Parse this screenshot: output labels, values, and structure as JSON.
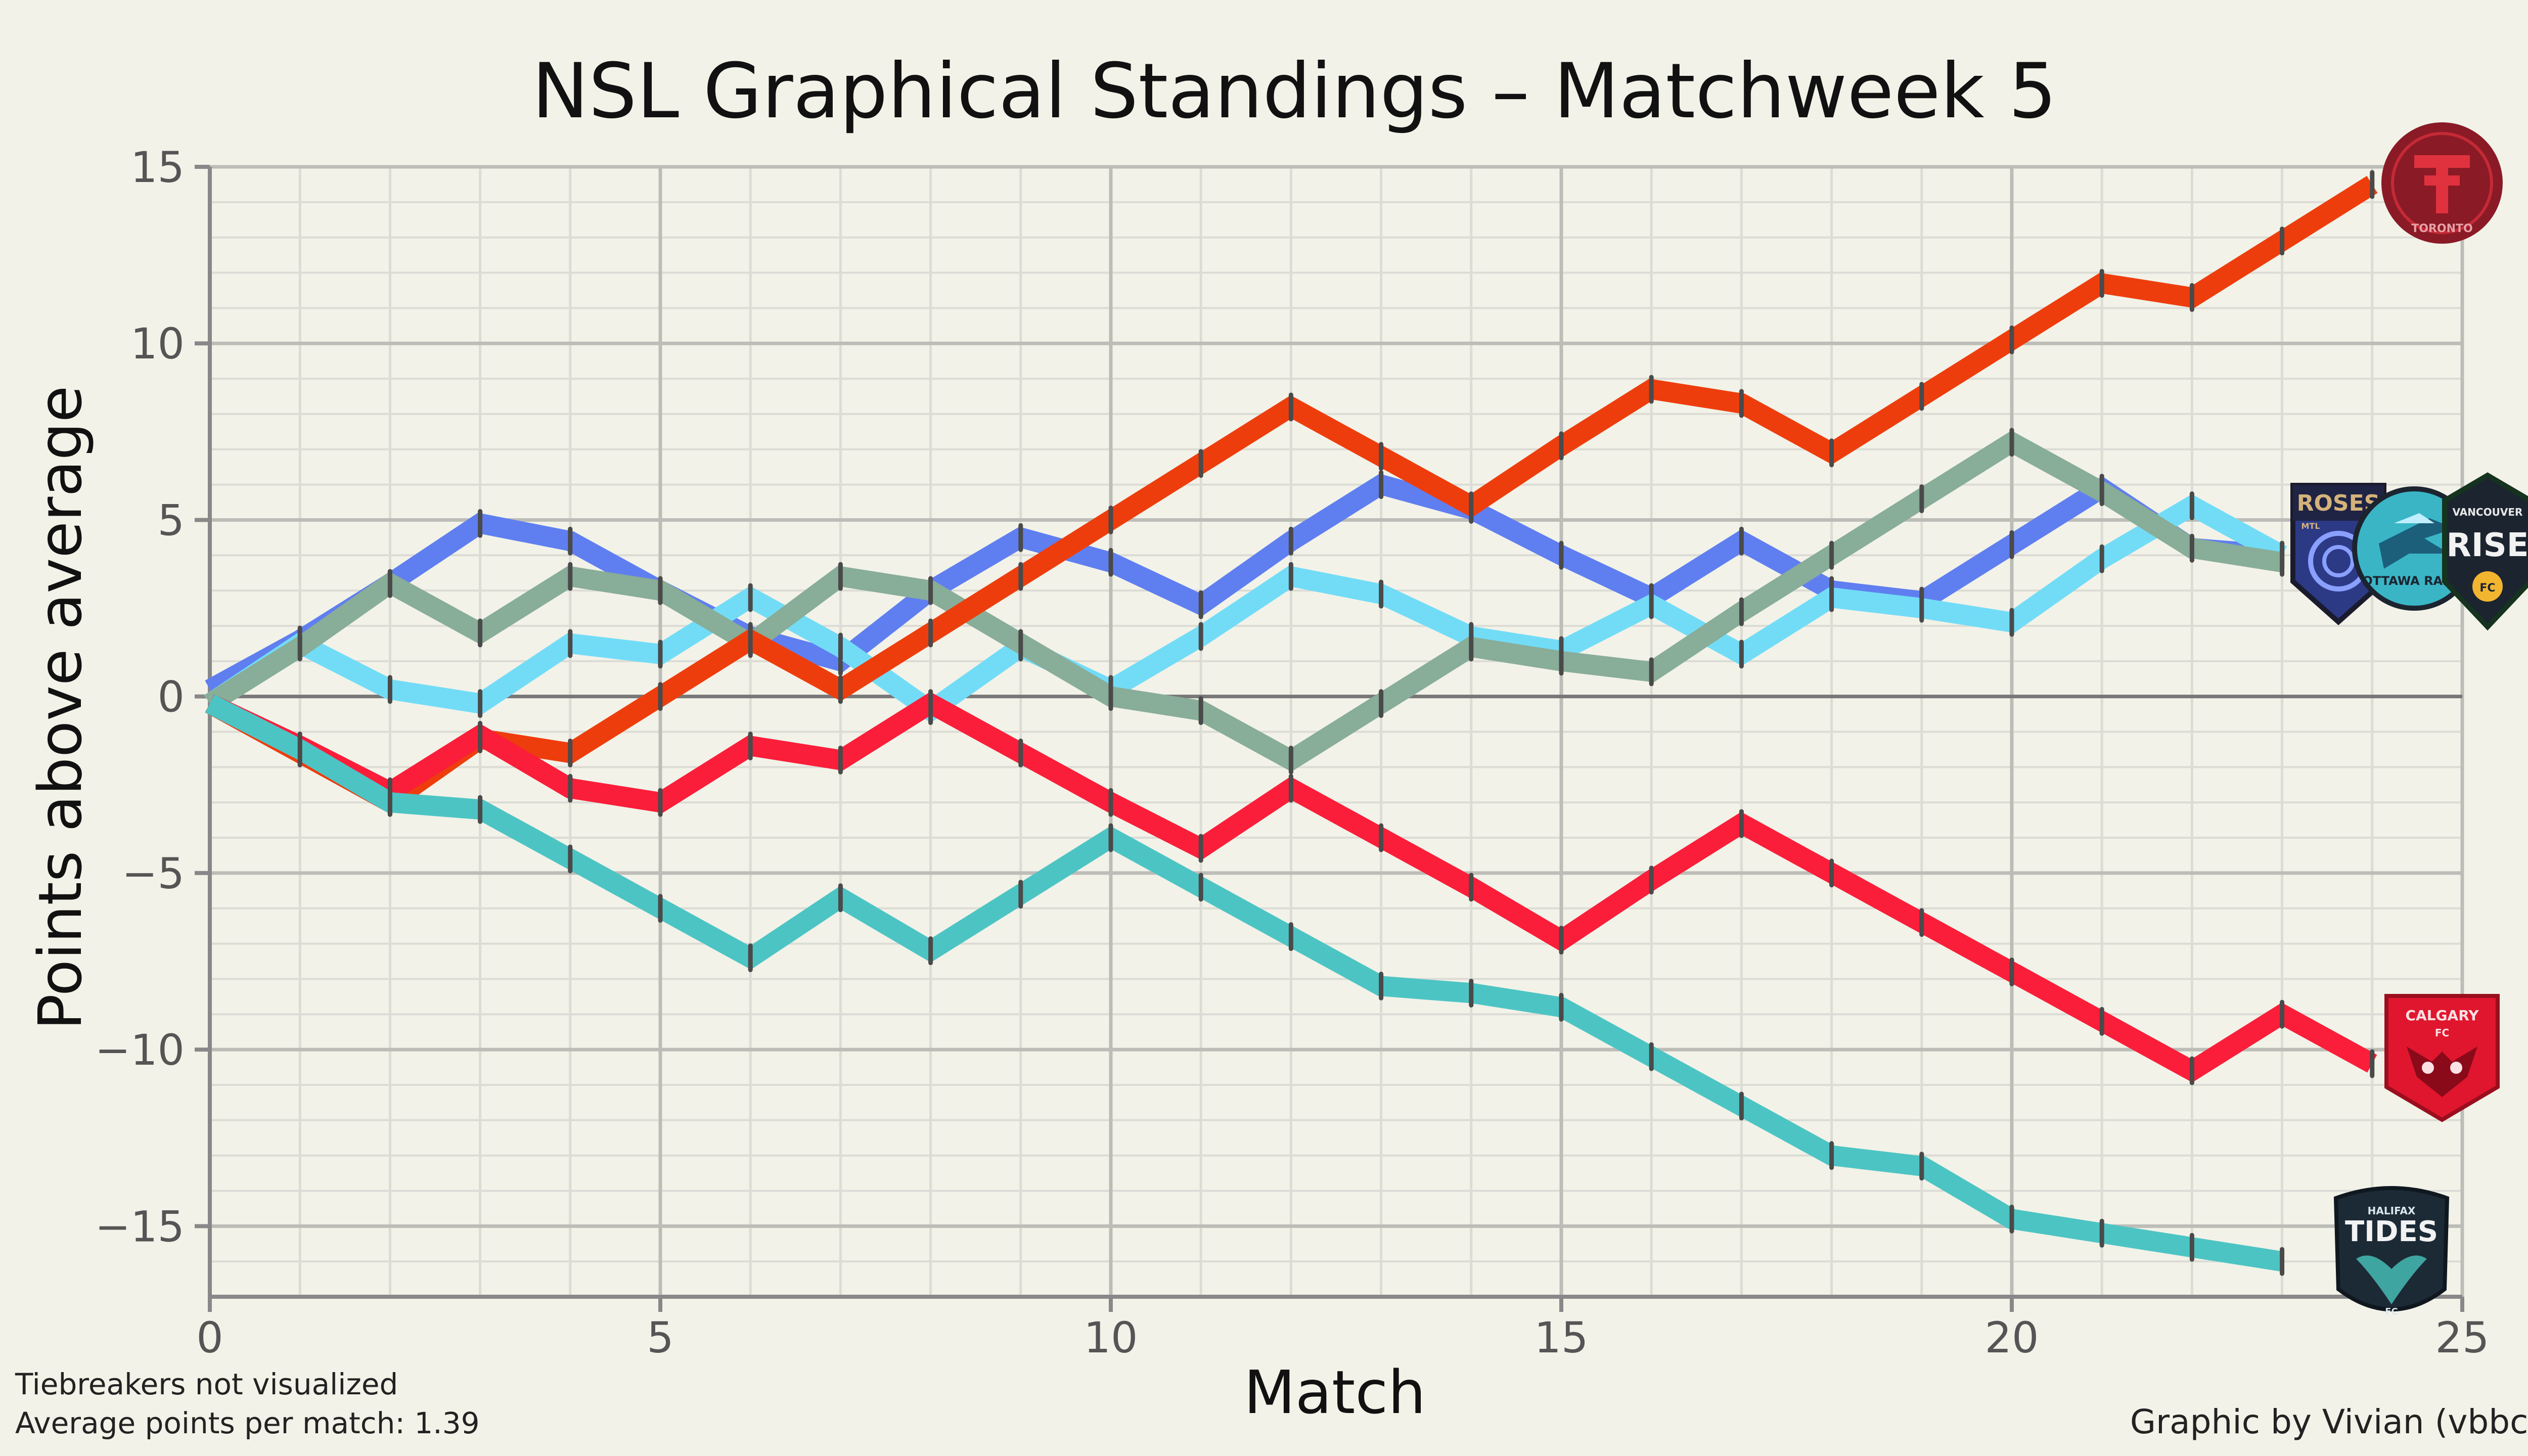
{
  "chart_data": {
    "type": "line",
    "title": "NSL Graphical Standings – Matchweek 5",
    "xlabel": "Match",
    "ylabel": "Points above average",
    "xlim": [
      0,
      25
    ],
    "ylim": [
      -17,
      15
    ],
    "x_ticks": [
      0,
      5,
      10,
      15,
      20,
      25
    ],
    "y_ticks": [
      -15,
      -10,
      -5,
      0,
      5,
      10,
      15
    ],
    "x_tick_labels": [
      "0",
      "5",
      "10",
      "15",
      "20",
      "25"
    ],
    "y_tick_labels": [
      "−15",
      "−10",
      "−5",
      "0",
      "5",
      "10",
      "15"
    ],
    "grid": true,
    "legend": "team logos at line ends",
    "series": [
      {
        "color": "#5f7ff0",
        "logo": "Roses",
        "values": [
          0.2,
          1.6,
          3.2,
          4.9,
          4.4,
          3.0,
          1.7,
          1.0,
          3.0,
          4.5,
          3.8,
          2.6,
          4.4,
          6.0,
          5.3,
          4.0,
          2.8,
          4.4,
          3.0,
          2.7,
          4.3,
          5.9,
          4.2,
          4.0
        ]
      },
      {
        "color": "#72dcf7",
        "logo": "Ottawa Rapid",
        "values": [
          -0.2,
          1.5,
          0.2,
          -0.2,
          1.5,
          1.2,
          2.8,
          1.4,
          -0.4,
          1.4,
          0.2,
          1.7,
          3.4,
          2.9,
          1.7,
          1.3,
          2.6,
          1.2,
          2.8,
          2.5,
          2.1,
          3.9,
          5.4,
          4.0
        ]
      },
      {
        "color": "#88ad98",
        "logo": "Vancouver Rise",
        "values": [
          -0.2,
          1.4,
          3.2,
          1.8,
          3.4,
          3.0,
          1.5,
          3.4,
          3.0,
          1.5,
          0.0,
          -0.4,
          -1.8,
          -0.2,
          1.4,
          1.0,
          0.7,
          2.4,
          4.0,
          5.6,
          7.2,
          5.8,
          4.2,
          3.8
        ]
      },
      {
        "color": "#ee3d0c",
        "logo": "Toronto",
        "values": [
          -0.2,
          -1.6,
          -3.0,
          -1.2,
          -1.6,
          0.0,
          1.6,
          0.2,
          1.8,
          3.4,
          5.0,
          6.6,
          8.2,
          6.8,
          5.4,
          7.1,
          8.7,
          8.3,
          6.9,
          8.5,
          10.1,
          11.7,
          11.3,
          12.9,
          14.5
        ]
      },
      {
        "color": "#fa1e3a",
        "logo": "Calgary",
        "values": [
          -0.2,
          -1.4,
          -2.7,
          -1.1,
          -2.6,
          -3.0,
          -1.4,
          -1.8,
          -0.2,
          -1.6,
          -3.0,
          -4.3,
          -2.6,
          -4.0,
          -5.4,
          -6.9,
          -5.2,
          -3.6,
          -5.0,
          -6.4,
          -7.8,
          -9.2,
          -10.6,
          -9.0,
          -10.4
        ]
      },
      {
        "color": "#4dc4c4",
        "logo": "Halifax Tides",
        "values": [
          -0.2,
          -1.5,
          -3.0,
          -3.2,
          -4.6,
          -6.0,
          -7.4,
          -5.7,
          -7.2,
          -5.6,
          -4.0,
          -5.4,
          -6.8,
          -8.2,
          -8.4,
          -8.8,
          -10.2,
          -11.6,
          -13.0,
          -13.3,
          -14.8,
          -15.2,
          -15.6,
          -16.0
        ]
      }
    ]
  },
  "notes": {
    "line1": "Tiebreakers not visualized",
    "line2": "Average points per match: 1.39",
    "credit": "Graphic by Vivian (vbbcla)"
  },
  "logos": {
    "toronto": {
      "text": "TORONTO"
    },
    "roses": {
      "text": "ROSES",
      "sub": "MTL"
    },
    "ottawa": {
      "text": "OTTAWA RAPID"
    },
    "vancouver": {
      "top": "VANCOUVER",
      "text": "RISE",
      "sub": "FC"
    },
    "calgary": {
      "text": "CALGARY",
      "sub": "FC"
    },
    "halifax": {
      "top": "HALIFAX",
      "text": "TIDES",
      "sub": "FC"
    }
  }
}
